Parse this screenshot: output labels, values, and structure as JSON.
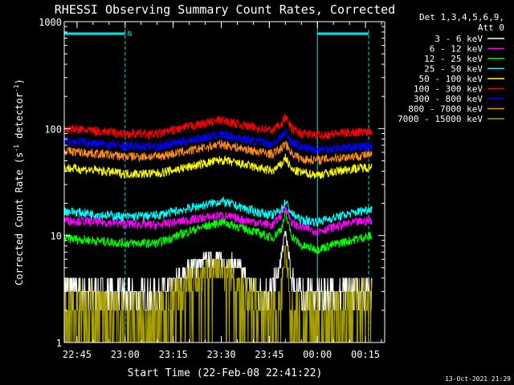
{
  "chart_data": {
    "type": "line",
    "title": "RHESSI Observing Summary Count Rates, Corrected",
    "xlabel": "Start Time (22-Feb-08 22:41:22)",
    "ylabel_main": "Corrected Count Rate (s",
    "ylabel_sup1": "-1",
    "ylabel_mid": " detector",
    "ylabel_sup2": "-1",
    "ylabel_end": ")",
    "yscale": "log",
    "ylim": [
      1,
      1000
    ],
    "xlim": [
      "22:41",
      "00:21"
    ],
    "x_ticks": [
      "22:45",
      "23:00",
      "23:15",
      "23:30",
      "23:45",
      "00:00",
      "00:15"
    ],
    "y_ticks": [
      "1",
      "10",
      "100",
      "1000"
    ],
    "legend_header": [
      "Det 1,3,4,5,6,9,",
      "Att 0"
    ],
    "legend_position": "right",
    "footer": "13-Oct-2021 21:29",
    "flag_label": "N",
    "shaded_intervals": [
      [
        "22:41",
        "23:00"
      ],
      "00:00"
    ],
    "series": [
      {
        "name": "3 - 6 keV",
        "color": "#ffffff",
        "x": [
          "22:41",
          "22:50",
          "23:00",
          "23:08",
          "23:15",
          "23:20",
          "23:28",
          "23:35",
          "23:40",
          "23:45",
          "23:48",
          "23:50",
          "23:52",
          "23:55",
          "24:00",
          "24:10",
          "24:17"
        ],
        "y": [
          3.2,
          3.0,
          2.8,
          2.6,
          3.3,
          5.0,
          6.3,
          5.2,
          3.2,
          2.8,
          4.5,
          11,
          4.0,
          2.8,
          2.8,
          3.0,
          3.3
        ]
      },
      {
        "name": "6 - 12 keV",
        "color": "#ff00ff",
        "x": [
          "22:41",
          "22:50",
          "23:00",
          "23:10",
          "23:20",
          "23:30",
          "23:40",
          "23:46",
          "23:49",
          "23:50",
          "23:52",
          "23:55",
          "24:00",
          "24:10",
          "24:17"
        ],
        "y": [
          14,
          13.5,
          13,
          12.5,
          14,
          15.5,
          13.5,
          12.5,
          16,
          19,
          13,
          12,
          11,
          13,
          14
        ]
      },
      {
        "name": "12 - 25 keV",
        "color": "#00ff00",
        "x": [
          "22:41",
          "22:50",
          "23:00",
          "23:10",
          "23:20",
          "23:30",
          "23:40",
          "23:46",
          "23:49",
          "23:50",
          "23:52",
          "23:55",
          "24:00",
          "24:10",
          "24:17"
        ],
        "y": [
          9.5,
          9,
          8.5,
          8.5,
          11,
          13.5,
          11,
          9.5,
          12,
          16,
          10,
          8,
          7.5,
          9,
          10
        ]
      },
      {
        "name": "25 - 50 keV",
        "color": "#00ffff",
        "x": [
          "22:41",
          "22:50",
          "23:00",
          "23:10",
          "23:20",
          "23:30",
          "23:40",
          "23:46",
          "23:49",
          "23:50",
          "23:52",
          "23:55",
          "24:00",
          "24:10",
          "24:17"
        ],
        "y": [
          17,
          16,
          15,
          15.5,
          18,
          21,
          17,
          15.5,
          18,
          21,
          16,
          14,
          13.5,
          16,
          18
        ]
      },
      {
        "name": "50 - 100 keV",
        "color": "#ffff00",
        "x": [
          "22:41",
          "22:50",
          "23:00",
          "23:10",
          "23:20",
          "23:30",
          "23:40",
          "23:46",
          "23:49",
          "23:50",
          "23:52",
          "23:55",
          "24:00",
          "24:10",
          "24:17"
        ],
        "y": [
          43,
          41,
          38,
          38,
          44,
          51,
          44,
          40,
          47,
          54,
          41,
          39,
          37,
          42,
          44
        ]
      },
      {
        "name": "100 - 300 keV",
        "color": "#ff0000",
        "x": [
          "22:41",
          "22:50",
          "23:00",
          "23:10",
          "23:20",
          "23:30",
          "23:40",
          "23:46",
          "23:49",
          "23:50",
          "23:52",
          "23:55",
          "24:00",
          "24:10",
          "24:17"
        ],
        "y": [
          100,
          96,
          90,
          89,
          105,
          120,
          103,
          96,
          115,
          130,
          100,
          90,
          87,
          92,
          95
        ]
      },
      {
        "name": "300 - 800 keV",
        "color": "#0000ff",
        "x": [
          "22:41",
          "22:50",
          "23:00",
          "23:10",
          "23:20",
          "23:30",
          "23:40",
          "23:46",
          "23:49",
          "23:50",
          "23:52",
          "23:55",
          "24:00",
          "24:10",
          "24:17"
        ],
        "y": [
          77,
          73,
          69,
          68,
          78,
          88,
          77,
          72,
          85,
          94,
          75,
          67,
          64,
          67,
          69
        ]
      },
      {
        "name": "800 - 7000 keV",
        "color": "#ff8c1a",
        "x": [
          "22:41",
          "22:50",
          "23:00",
          "23:10",
          "23:20",
          "23:30",
          "23:40",
          "23:46",
          "23:49",
          "23:50",
          "23:52",
          "23:55",
          "24:00",
          "24:10",
          "24:17"
        ],
        "y": [
          62,
          59,
          55,
          55,
          62,
          72,
          62,
          58,
          66,
          74,
          59,
          52,
          51,
          55,
          57
        ]
      },
      {
        "name": "7000 - 15000 keV",
        "color": "#a8a000",
        "x": [
          "22:41",
          "22:50",
          "23:00",
          "23:08",
          "23:15",
          "23:20",
          "23:28",
          "23:35",
          "23:40",
          "23:45",
          "23:48",
          "23:50",
          "23:52",
          "23:55",
          "24:00",
          "24:10",
          "24:17"
        ],
        "y": [
          2.5,
          2.2,
          1.7,
          1.6,
          2.4,
          4.0,
          5.0,
          4.0,
          2.4,
          1.6,
          2.2,
          7.0,
          2.4,
          1.6,
          1.7,
          2.2,
          2.5
        ]
      }
    ]
  }
}
